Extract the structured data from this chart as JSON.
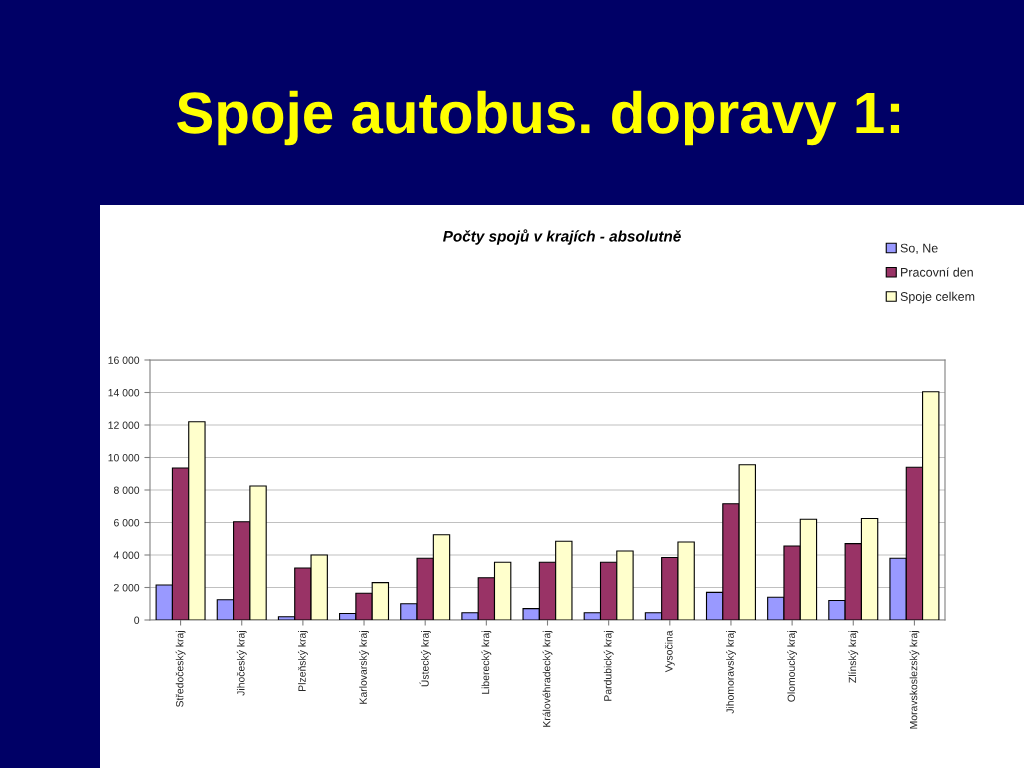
{
  "chart_data": {
    "type": "bar",
    "title": "Spoje autobus. dopravy 1:",
    "subtitle": "Počty spojů v krajích - absolutně",
    "categories": [
      "Středočeský kraj",
      "Jihočeský kraj",
      "Plzeňský kraj",
      "Karlovarský kraj",
      "Ústecký kraj",
      "Liberecký kraj",
      "Královéhradecký kraj",
      "Pardubický kraj",
      "Vysočina",
      "Jihomoravský kraj",
      "Olomoucký kraj",
      "Zlínský kraj",
      "Moravskoslezský kraj"
    ],
    "series": [
      {
        "name": "So, Ne",
        "color": "#9999ff",
        "values": [
          2150,
          1250,
          200,
          400,
          1000,
          450,
          700,
          450,
          450,
          1700,
          1400,
          1200,
          3800
        ]
      },
      {
        "name": "Pracovní den",
        "color": "#993366",
        "values": [
          9350,
          6050,
          3200,
          1650,
          3800,
          2600,
          3550,
          3550,
          3850,
          7150,
          4550,
          4700,
          9400
        ]
      },
      {
        "name": "Spoje celkem",
        "color": "#ffffcc",
        "values": [
          12200,
          8250,
          4000,
          2300,
          5250,
          3550,
          4850,
          4250,
          4800,
          9550,
          6200,
          6250,
          14050
        ]
      }
    ],
    "ylim": [
      0,
      16000
    ],
    "yticks": [
      {
        "value": 0,
        "label": "0"
      },
      {
        "value": 2000,
        "label": "2 000"
      },
      {
        "value": 4000,
        "label": "4 000"
      },
      {
        "value": 6000,
        "label": "6 000"
      },
      {
        "value": 8000,
        "label": "8 000"
      },
      {
        "value": 10000,
        "label": "10 000"
      },
      {
        "value": 12000,
        "label": "12 000"
      },
      {
        "value": 14000,
        "label": "14 000"
      },
      {
        "value": 16000,
        "label": "16 000"
      }
    ],
    "grid": "y",
    "legend": "top right"
  }
}
